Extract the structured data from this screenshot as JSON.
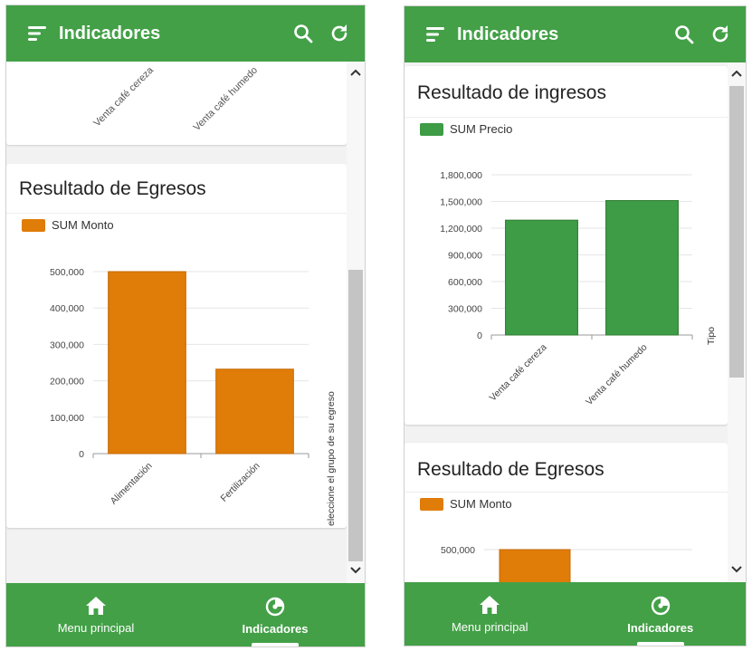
{
  "colors": {
    "brand": "#43a047",
    "income_bar": "#3d9c45",
    "expense_bar": "#e07c08"
  },
  "app": {
    "title": "Indicadores"
  },
  "nav": {
    "items": [
      {
        "label": "Menu principal",
        "icon": "home-icon"
      },
      {
        "label": "Indicadores",
        "icon": "chart-pie-icon",
        "active": true
      }
    ]
  },
  "left": {
    "prev_card_labels": [
      "Venta café cereza",
      "Venta café humedo"
    ],
    "expenses": {
      "title": "Resultado de Egresos",
      "legend": "SUM Monto",
      "side_label": "eleccione el grupo de su egreso"
    }
  },
  "right": {
    "income": {
      "title": "Resultado de ingresos",
      "legend": "SUM Precio",
      "side_label": "Tipo"
    },
    "expenses": {
      "title": "Resultado de Egresos",
      "legend": "SUM Monto",
      "first_tick": "500,000"
    }
  },
  "chart_data": [
    {
      "type": "bar",
      "title": "Resultado de Egresos",
      "categories": [
        "Alimentación",
        "Fertilización"
      ],
      "series": [
        {
          "name": "SUM Monto",
          "values": [
            500000,
            232000
          ]
        }
      ],
      "ylim": [
        0,
        500000
      ],
      "yticks": [
        "0",
        "100,000",
        "200,000",
        "300,000",
        "400,000",
        "500,000"
      ],
      "xlabel": "eleccione el grupo de su egreso"
    },
    {
      "type": "bar",
      "title": "Resultado de ingresos",
      "categories": [
        "Venta café cereza",
        "Venta café humedo"
      ],
      "series": [
        {
          "name": "SUM Precio",
          "values": [
            1290000,
            1510000
          ]
        }
      ],
      "ylim": [
        0,
        1800000
      ],
      "yticks": [
        "0",
        "300,000",
        "600,000",
        "900,000",
        "1,200,000",
        "1,500,000",
        "1,800,000"
      ],
      "xlabel": "Tipo"
    }
  ]
}
